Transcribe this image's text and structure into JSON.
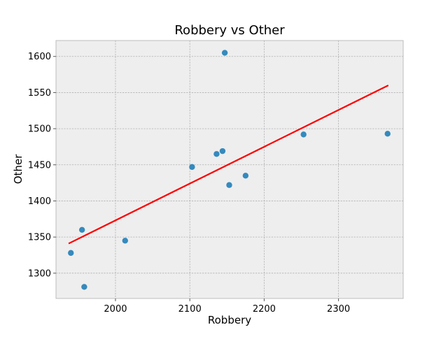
{
  "chart_data": {
    "type": "scatter",
    "title": "Robbery vs Other",
    "xlabel": "Robbery",
    "ylabel": "Other",
    "xlim": [
      1920,
      2387
    ],
    "ylim": [
      1265,
      1622
    ],
    "xticks": [
      2000,
      2100,
      2200,
      2300
    ],
    "yticks": [
      1300,
      1350,
      1400,
      1450,
      1500,
      1550,
      1600
    ],
    "grid": true,
    "points": [
      {
        "x": 2147,
        "y": 1605
      },
      {
        "x": 1940,
        "y": 1328
      },
      {
        "x": 1955,
        "y": 1360
      },
      {
        "x": 1958,
        "y": 1281
      },
      {
        "x": 2013,
        "y": 1345
      },
      {
        "x": 2103,
        "y": 1447
      },
      {
        "x": 2136,
        "y": 1465
      },
      {
        "x": 2144,
        "y": 1469
      },
      {
        "x": 2153,
        "y": 1422
      },
      {
        "x": 2175,
        "y": 1435
      },
      {
        "x": 2253,
        "y": 1492
      },
      {
        "x": 2366,
        "y": 1493
      }
    ],
    "fit_line": {
      "x": [
        1937,
        2367
      ],
      "y": [
        1341,
        1560
      ]
    },
    "colors": {
      "points": "#348abd",
      "fit_line": "#ff0000",
      "plot_background": "#eeeeee",
      "plot_border": "#bcbcbc",
      "grid": "#b0b0b0"
    }
  }
}
